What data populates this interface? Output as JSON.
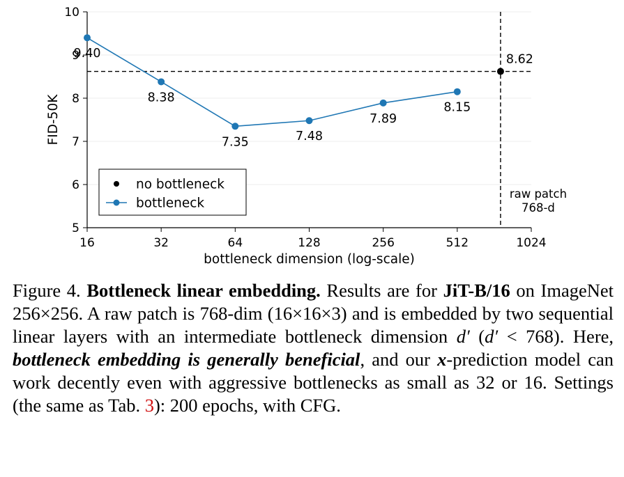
{
  "chart_data": {
    "type": "line",
    "xlabel": "bottleneck dimension (log-scale)",
    "ylabel": "FID-50K",
    "x_scale": "log2",
    "xlim": [
      16,
      1024
    ],
    "ylim": [
      5,
      10
    ],
    "x_ticks": [
      "16",
      "32",
      "64",
      "128",
      "256",
      "512",
      "1024"
    ],
    "y_ticks": [
      "5",
      "6",
      "7",
      "8",
      "9",
      "10"
    ],
    "grid": "horizontal, light",
    "legend_position": "lower-left",
    "series": [
      {
        "name": "bottleneck",
        "color": "#1f77b4",
        "x": [
          16,
          32,
          64,
          128,
          256,
          512
        ],
        "y": [
          9.4,
          8.38,
          7.35,
          7.48,
          7.89,
          8.15
        ],
        "labels": [
          "9.40",
          "8.38",
          "7.35",
          "7.48",
          "7.89",
          "8.15"
        ]
      },
      {
        "name": "no bottleneck",
        "color": "#000000",
        "x": [
          768
        ],
        "y": [
          8.62
        ],
        "labels": [
          "8.62"
        ]
      }
    ],
    "reference_lines": {
      "horizontal_y": 8.62,
      "vertical_x": 768,
      "vertical_label_line1": "raw patch",
      "vertical_label_line2": "768-d"
    }
  },
  "caption": {
    "figure_label": "Figure 4.",
    "bold_title": "Bottleneck linear embedding.",
    "t1": "Results are for",
    "model": "JiT-B/16",
    "t2": "on ImageNet 256×256. A raw patch is 768-dim (16×16×3) and is embedded by two sequential linear layers with an intermediate bottleneck dimension",
    "d_prime": "d′",
    "t3": "(",
    "d_prime2": "d′",
    "t4": "< 768). Here,",
    "emph": "bottleneck embedding is generally beneficial",
    "t5": ", and our",
    "x_sym": "x",
    "t6": "-prediction model can work decently even with aggressive bottlenecks as small as 32 or 16. Settings (the same as Tab.",
    "tab_ref": "3",
    "t7": "): 200 epochs, with CFG."
  }
}
